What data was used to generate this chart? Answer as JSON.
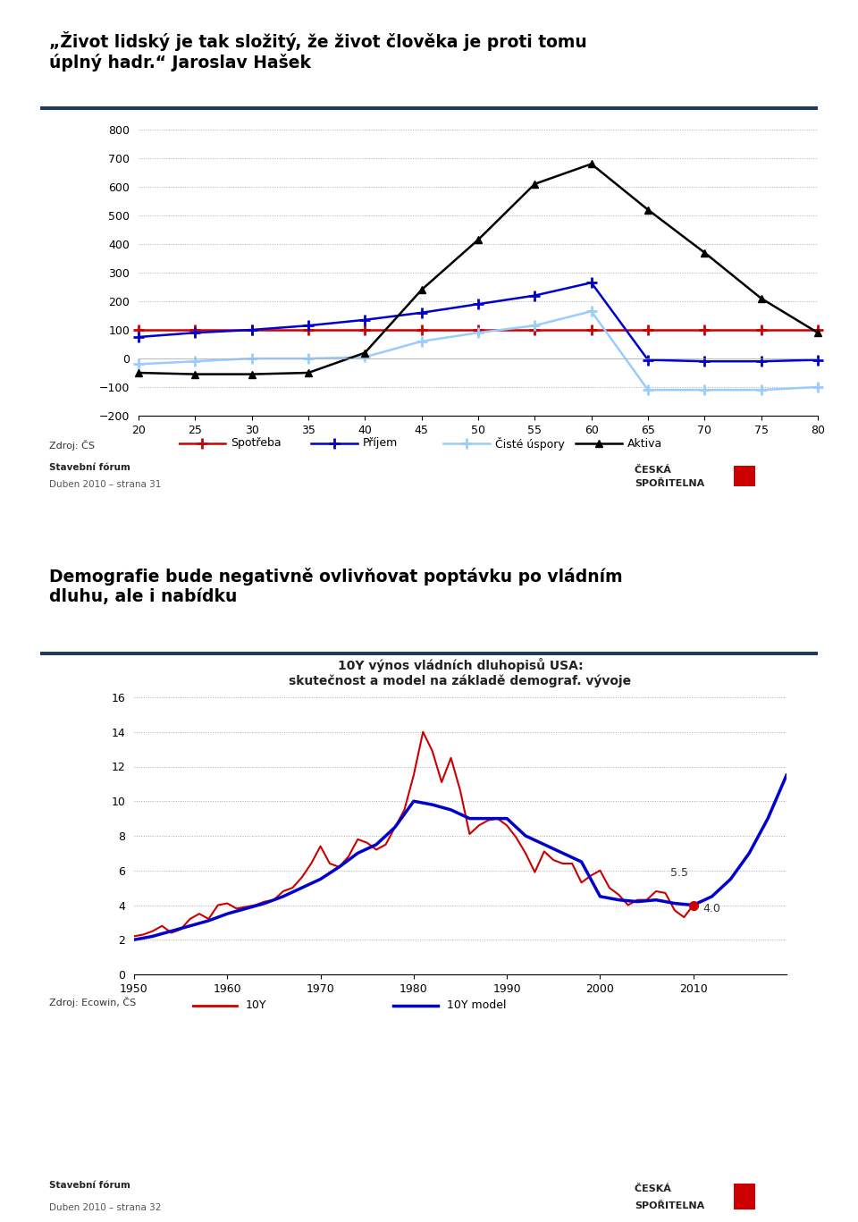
{
  "slide1": {
    "title": "„Život lidský je tak složitý, že život člověka je proti tomu\núplný hadr.“ Jaroslav Hašek",
    "source": "Zdroj: ČS",
    "footer_line1": "Stavební fórum",
    "footer_line2": "Duben 2010 – strana 31",
    "chart": {
      "x": [
        20,
        25,
        30,
        35,
        40,
        45,
        50,
        55,
        60,
        65,
        70,
        75,
        80
      ],
      "spotreba": [
        100,
        100,
        100,
        100,
        100,
        100,
        100,
        100,
        100,
        100,
        100,
        100,
        100
      ],
      "prijem": [
        75,
        90,
        100,
        115,
        135,
        160,
        190,
        220,
        265,
        -5,
        -10,
        -10,
        -5
      ],
      "ciste_uspory": [
        -20,
        -10,
        0,
        0,
        5,
        60,
        90,
        115,
        165,
        -110,
        -110,
        -110,
        -100
      ],
      "aktiva": [
        -50,
        -55,
        -55,
        -50,
        20,
        240,
        415,
        610,
        680,
        520,
        370,
        210,
        90
      ],
      "ylim": [
        -200,
        800
      ],
      "yticks": [
        -200,
        -100,
        0,
        100,
        200,
        300,
        400,
        500,
        600,
        700,
        800
      ],
      "xlim": [
        20,
        80
      ],
      "xticks": [
        20,
        25,
        30,
        35,
        40,
        45,
        50,
        55,
        60,
        65,
        70,
        75,
        80
      ],
      "spotreba_color": "#cc0000",
      "prijem_color": "#0000cc",
      "ciste_uspory_color": "#99ccff",
      "aktiva_color": "#000000"
    }
  },
  "slide2": {
    "title": "Demografie bude negativně ovlivňovat poptávku po vládním\ndluhu, ale i nabídku",
    "source": "Zdroj: Ecowin, ČS",
    "footer_line1": "Stavební fórum",
    "footer_line2": "Duben 2010 – strana 32",
    "chart": {
      "chart_title": "10Y výnos vládních dluhopisů USA:\nskutečnost a model na základě demograf. vývoje",
      "x_10y": [
        1950,
        1951,
        1952,
        1953,
        1954,
        1955,
        1956,
        1957,
        1958,
        1959,
        1960,
        1961,
        1962,
        1963,
        1964,
        1965,
        1966,
        1967,
        1968,
        1969,
        1970,
        1971,
        1972,
        1973,
        1974,
        1975,
        1976,
        1977,
        1978,
        1979,
        1980,
        1981,
        1982,
        1983,
        1984,
        1985,
        1986,
        1987,
        1988,
        1989,
        1990,
        1991,
        1992,
        1993,
        1994,
        1995,
        1996,
        1997,
        1998,
        1999,
        2000,
        2001,
        2002,
        2003,
        2004,
        2005,
        2006,
        2007,
        2008,
        2009,
        2010
      ],
      "y_10y": [
        2.2,
        2.3,
        2.5,
        2.8,
        2.4,
        2.6,
        3.2,
        3.5,
        3.2,
        4.0,
        4.1,
        3.8,
        3.9,
        4.0,
        4.2,
        4.3,
        4.8,
        5.0,
        5.6,
        6.4,
        7.4,
        6.4,
        6.2,
        6.8,
        7.8,
        7.6,
        7.2,
        7.5,
        8.5,
        9.5,
        11.5,
        14.0,
        12.9,
        11.1,
        12.5,
        10.6,
        8.1,
        8.6,
        8.9,
        9.0,
        8.6,
        7.9,
        7.0,
        5.9,
        7.1,
        6.6,
        6.4,
        6.4,
        5.3,
        5.7,
        6.0,
        5.0,
        4.6,
        4.0,
        4.3,
        4.3,
        4.8,
        4.7,
        3.7,
        3.3,
        4.0
      ],
      "x_model": [
        1950,
        1952,
        1954,
        1956,
        1958,
        1960,
        1962,
        1964,
        1966,
        1968,
        1970,
        1972,
        1974,
        1976,
        1978,
        1980,
        1982,
        1984,
        1986,
        1988,
        1990,
        1992,
        1994,
        1996,
        1998,
        2000,
        2002,
        2004,
        2006,
        2008,
        2010,
        2012,
        2014,
        2016,
        2018,
        2020
      ],
      "y_model": [
        2.0,
        2.2,
        2.5,
        2.8,
        3.1,
        3.5,
        3.8,
        4.1,
        4.5,
        5.0,
        5.5,
        6.2,
        7.0,
        7.5,
        8.5,
        10.0,
        9.8,
        9.5,
        9.0,
        9.0,
        9.0,
        8.0,
        7.5,
        7.0,
        6.5,
        4.5,
        4.3,
        4.2,
        4.3,
        4.1,
        4.0,
        4.5,
        5.5,
        7.0,
        9.0,
        11.5
      ],
      "dot_x": 2010,
      "dot_y": 4.0,
      "ann_55_x": 2007.5,
      "ann_55_y": 5.7,
      "ann_55_label": "5.5",
      "ann_40_x": 2011.0,
      "ann_40_y": 3.6,
      "ann_40_label": "4.0",
      "ylim": [
        0,
        16
      ],
      "yticks": [
        0,
        2,
        4,
        6,
        8,
        10,
        12,
        14,
        16
      ],
      "xlim": [
        1950,
        2020
      ],
      "xticks": [
        1950,
        1960,
        1970,
        1980,
        1990,
        2000,
        2010
      ],
      "color_10y": "#cc0000",
      "color_model": "#0000cc"
    }
  },
  "bg_color": "#ffffff",
  "title_color": "#000000",
  "footer_bg": "#cde0f0",
  "divider_color": "#1f3864",
  "grid_color": "#aaaaaa",
  "gap_color": "#e8e8e8"
}
